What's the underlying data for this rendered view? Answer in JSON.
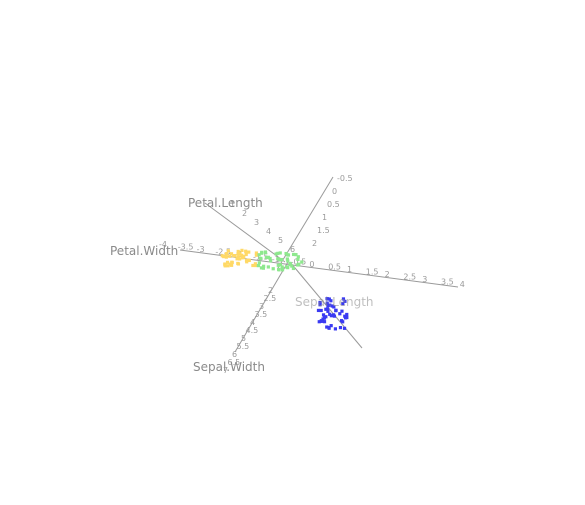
{
  "chart_data": {
    "type": "scatter",
    "projection": "3d",
    "axes": [
      {
        "name": "Petal.Length",
        "ticks": [
          "1",
          "2",
          "3",
          "4",
          "5",
          "6"
        ]
      },
      {
        "name": "Petal.Width",
        "ticks": [
          "-4",
          "-3.5",
          "-3",
          "-2.5",
          "-2",
          "-1.5",
          "-1",
          "-0.5",
          "0",
          "0.5",
          "1",
          "1.5",
          "2",
          "2.5",
          "3",
          "3.5",
          "4"
        ]
      },
      {
        "name": "Sepal.Length",
        "ticks": [
          "-0.5",
          "0",
          "0.5",
          "1",
          "1.5",
          "2"
        ]
      },
      {
        "name": "Sepal.Width",
        "ticks": [
          "2",
          "2.5",
          "3",
          "3.5",
          "4",
          "4.5",
          "5",
          "5.5",
          "6",
          "6.5",
          "7"
        ]
      }
    ],
    "series": [
      {
        "color": "#ffd966",
        "count": 50,
        "x_range": [
          -3.5,
          -1.5
        ],
        "y_range": [
          -0.4,
          0.4
        ]
      },
      {
        "color": "#8ee88e",
        "count": 50,
        "x_range": [
          -1.5,
          1.0
        ],
        "y_range": [
          -0.3,
          0.6
        ]
      },
      {
        "color": "#3a3af2",
        "count": 50,
        "x_range": [
          1.8,
          3.5
        ],
        "y_range": [
          2.0,
          3.6
        ]
      }
    ],
    "grid": false,
    "legend": "none"
  }
}
